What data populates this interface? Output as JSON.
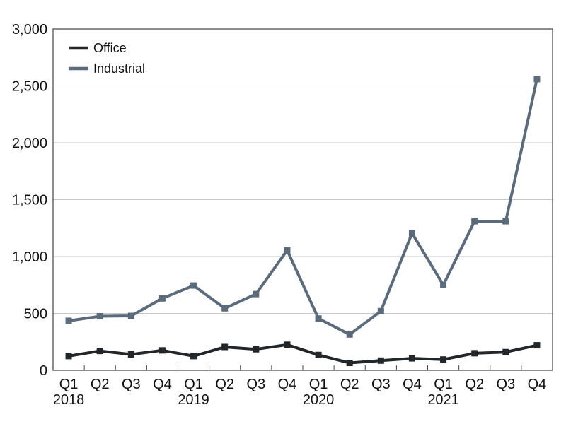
{
  "chart_data": {
    "type": "line",
    "title": "",
    "xlabel": "",
    "ylabel": "",
    "ylim": [
      0,
      3000
    ],
    "yticks": [
      0,
      500,
      1000,
      1500,
      2000,
      2500,
      3000
    ],
    "ytick_labels": [
      "0",
      "500",
      "1,000",
      "1,500",
      "2,000",
      "2,500",
      "3,000"
    ],
    "grid": "horizontal",
    "legend_position": "top-left",
    "categories": [
      "Q1",
      "Q2",
      "Q3",
      "Q4",
      "Q1",
      "Q2",
      "Q3",
      "Q4",
      "Q1",
      "Q2",
      "Q3",
      "Q4",
      "Q1",
      "Q2",
      "Q3",
      "Q4"
    ],
    "years": [
      {
        "label": "2018",
        "start_index": 0
      },
      {
        "label": "2019",
        "start_index": 4
      },
      {
        "label": "2020",
        "start_index": 8
      },
      {
        "label": "2021",
        "start_index": 12
      }
    ],
    "series": [
      {
        "name": "Office",
        "color": "#222629",
        "values": [
          125,
          170,
          140,
          175,
          125,
          205,
          185,
          225,
          135,
          65,
          85,
          105,
          95,
          150,
          160,
          220
        ]
      },
      {
        "name": "Industrial",
        "color": "#5b6b7b",
        "values": [
          435,
          475,
          478,
          632,
          745,
          545,
          670,
          1055,
          455,
          315,
          520,
          1205,
          750,
          1310,
          1310,
          2560
        ]
      }
    ]
  }
}
